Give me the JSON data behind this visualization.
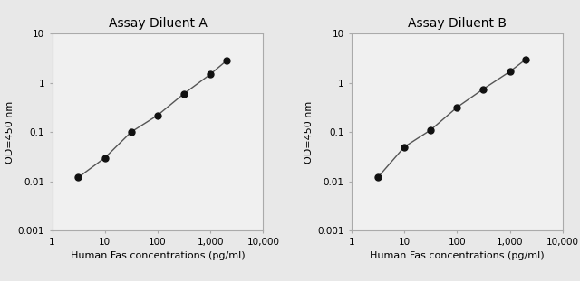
{
  "chart_A": {
    "title": "Assay Diluent A",
    "x": [
      3.13,
      10,
      31.3,
      100,
      313,
      1000,
      2000
    ],
    "y": [
      0.012,
      0.03,
      0.1,
      0.22,
      0.6,
      1.5,
      2.8
    ]
  },
  "chart_B": {
    "title": "Assay Diluent B",
    "x": [
      3.13,
      10,
      31.3,
      100,
      313,
      1000,
      2000
    ],
    "y": [
      0.012,
      0.05,
      0.11,
      0.32,
      0.75,
      1.7,
      3.0
    ]
  },
  "xlabel": "Human Fas concentrations (pg/ml)",
  "ylabel": "OD=450 nm",
  "xlim": [
    1,
    10000
  ],
  "ylim": [
    0.001,
    10
  ],
  "xticks": [
    1,
    10,
    100,
    1000,
    10000
  ],
  "xtick_labels": [
    "1",
    "10",
    "100",
    "1,000",
    "10,000"
  ],
  "yticks": [
    0.001,
    0.01,
    0.1,
    1,
    10
  ],
  "ytick_labels": [
    "0.001",
    "0.01",
    "0.1",
    "1",
    "10"
  ],
  "line_color": "#555555",
  "marker_color": "#111111",
  "marker_size": 5,
  "line_width": 1.0,
  "title_fontsize": 10,
  "label_fontsize": 8,
  "tick_fontsize": 7.5,
  "bg_color": "#e8e8e8",
  "plot_bg_color": "#f0f0f0",
  "spine_color": "#aaaaaa"
}
